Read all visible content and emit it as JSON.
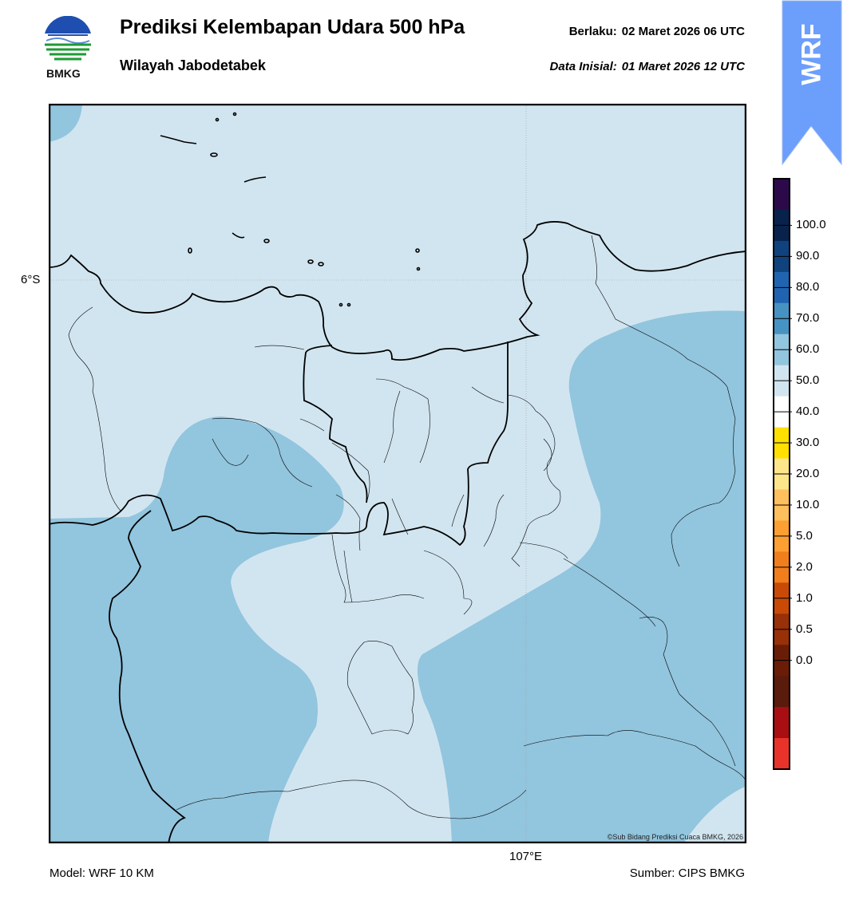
{
  "header": {
    "title": "Prediksi Kelembapan Udara 500 hPa",
    "subtitle": "Wilayah Jabodetabek",
    "valid_label": "Berlaku:",
    "valid_value": "02 Maret 2026 06 UTC",
    "init_label": "Data Inisial:",
    "init_value": "01 Maret 2026 12 UTC"
  },
  "logo": {
    "text": "BMKG",
    "icon": "bmkg-logo-icon"
  },
  "badge": {
    "text": "WRF",
    "color": "#6c9efc"
  },
  "map": {
    "lat_label": "6°S",
    "lon_label": "107°E",
    "credit": "©Sub Bidang Prediksi Cuaca BMKG, 2026",
    "colors": {
      "sea_low": "#d1e5f0",
      "sea_mid": "#92c5de",
      "land_line": "#000000"
    }
  },
  "colorbar": {
    "labels": [
      "100.0",
      "90.0",
      "80.0",
      "70.0",
      "60.0",
      "50.0",
      "40.0",
      "30.0",
      "20.0",
      "10.0",
      "5.0",
      "2.0",
      "1.0",
      "0.5",
      "0.0"
    ],
    "colors": [
      "#2c0a4a",
      "#08224c",
      "#10427e",
      "#2064b1",
      "#4693c3",
      "#92c5de",
      "#d1e5f0",
      "#ffffff",
      "#ffe000",
      "#fde68a",
      "#fdc05c",
      "#fca033",
      "#f07e1c",
      "#c84a06",
      "#983008",
      "#6a1d06",
      "#5a1a0c",
      "#a80e12",
      "#e8322a"
    ]
  },
  "footer": {
    "model": "Model: WRF 10 KM",
    "source": "Sumber: CIPS BMKG"
  }
}
